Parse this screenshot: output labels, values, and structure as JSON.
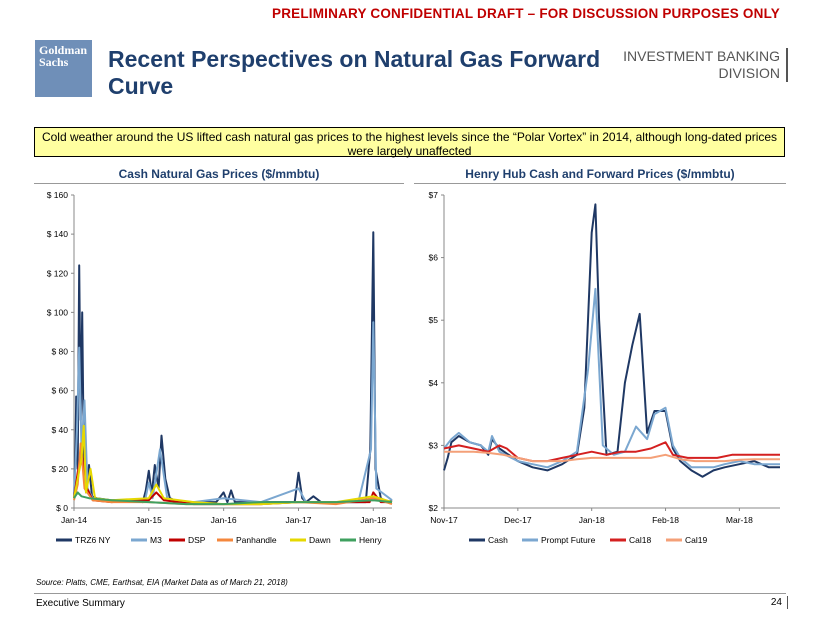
{
  "header": {
    "banner": "PRELIMINARY CONFIDENTIAL DRAFT – FOR DISCUSSION PURPOSES ONLY",
    "logo_line1": "Goldman",
    "logo_line2": "Sachs",
    "title": "Recent Perspectives on Natural Gas Forward Curve",
    "division_line1": "INVESTMENT BANKING",
    "division_line2": "DIVISION"
  },
  "callout": "Cold weather around the US lifted cash natural gas prices to the highest levels since the “Polar Vortex” in 2014, although long-dated prices were largely unaffected",
  "chart_data": [
    {
      "type": "line",
      "title": "Cash Natural Gas Prices ($/mmbtu)",
      "ylim": [
        0,
        160
      ],
      "y_ticks": [
        "$ 0",
        "$ 20",
        "$ 40",
        "$ 60",
        "$ 80",
        "$ 100",
        "$ 120",
        "$ 140",
        "$ 160"
      ],
      "x_ticks": [
        "Jan-14",
        "Jan-15",
        "Jan-16",
        "Jan-17",
        "Jan-18"
      ],
      "legend_position": "bottom",
      "series": [
        {
          "name": "TRZ6 NY",
          "color": "#1f3864",
          "points": [
            [
              0,
              5
            ],
            [
              0.02,
              30
            ],
            [
              0.03,
              57
            ],
            [
              0.05,
              20
            ],
            [
              0.07,
              124
            ],
            [
              0.09,
              45
            ],
            [
              0.11,
              100
            ],
            [
              0.13,
              30
            ],
            [
              0.16,
              8
            ],
            [
              0.2,
              22
            ],
            [
              0.24,
              6
            ],
            [
              0.3,
              5
            ],
            [
              0.5,
              4
            ],
            [
              0.75,
              4
            ],
            [
              0.92,
              3
            ],
            [
              0.96,
              9
            ],
            [
              1.0,
              19
            ],
            [
              1.04,
              7
            ],
            [
              1.08,
              22
            ],
            [
              1.13,
              10
            ],
            [
              1.17,
              37
            ],
            [
              1.22,
              15
            ],
            [
              1.28,
              5
            ],
            [
              1.4,
              3
            ],
            [
              1.6,
              3
            ],
            [
              1.9,
              3
            ],
            [
              2.0,
              8
            ],
            [
              2.05,
              3
            ],
            [
              2.1,
              9
            ],
            [
              2.15,
              3
            ],
            [
              2.5,
              3
            ],
            [
              2.95,
              3
            ],
            [
              3.0,
              18
            ],
            [
              3.05,
              5
            ],
            [
              3.1,
              3
            ],
            [
              3.2,
              6
            ],
            [
              3.3,
              3
            ],
            [
              3.6,
              3
            ],
            [
              3.9,
              3
            ],
            [
              3.96,
              30
            ],
            [
              4.0,
              141
            ],
            [
              4.03,
              20
            ],
            [
              4.1,
              5
            ],
            [
              4.2,
              3
            ],
            [
              4.25,
              4
            ]
          ]
        },
        {
          "name": "M3",
          "color": "#7ba7d0",
          "points": [
            [
              0,
              5
            ],
            [
              0.04,
              40
            ],
            [
              0.07,
              82
            ],
            [
              0.1,
              30
            ],
            [
              0.14,
              55
            ],
            [
              0.18,
              10
            ],
            [
              0.25,
              5
            ],
            [
              0.5,
              4
            ],
            [
              0.95,
              4
            ],
            [
              1.0,
              13
            ],
            [
              1.05,
              5
            ],
            [
              1.15,
              30
            ],
            [
              1.25,
              4
            ],
            [
              1.6,
              3
            ],
            [
              2.0,
              5
            ],
            [
              2.5,
              3
            ],
            [
              3.0,
              10
            ],
            [
              3.1,
              3
            ],
            [
              3.8,
              3
            ],
            [
              3.97,
              30
            ],
            [
              4.0,
              95
            ],
            [
              4.04,
              10
            ],
            [
              4.25,
              4
            ]
          ]
        },
        {
          "name": "DSP",
          "color": "#c00000",
          "points": [
            [
              0,
              5
            ],
            [
              0.05,
              18
            ],
            [
              0.1,
              30
            ],
            [
              0.15,
              12
            ],
            [
              0.25,
              4
            ],
            [
              0.5,
              3
            ],
            [
              1.0,
              4
            ],
            [
              1.1,
              8
            ],
            [
              1.2,
              4
            ],
            [
              1.6,
              2
            ],
            [
              2.0,
              2
            ],
            [
              2.5,
              2
            ],
            [
              3.0,
              3
            ],
            [
              3.5,
              3
            ],
            [
              3.95,
              3
            ],
            [
              4.0,
              8
            ],
            [
              4.1,
              3
            ],
            [
              4.25,
              3
            ]
          ]
        },
        {
          "name": "Panhandle",
          "color": "#f4873c",
          "points": [
            [
              0,
              4
            ],
            [
              0.05,
              12
            ],
            [
              0.09,
              33
            ],
            [
              0.14,
              10
            ],
            [
              0.25,
              4
            ],
            [
              0.5,
              3
            ],
            [
              1.0,
              3
            ],
            [
              1.5,
              2
            ],
            [
              2.0,
              2
            ],
            [
              2.5,
              2
            ],
            [
              3.0,
              3
            ],
            [
              3.5,
              2
            ],
            [
              4.0,
              5
            ],
            [
              4.25,
              2
            ]
          ]
        },
        {
          "name": "Dawn",
          "color": "#e6d800",
          "points": [
            [
              0,
              5
            ],
            [
              0.05,
              15
            ],
            [
              0.1,
              25
            ],
            [
              0.13,
              42
            ],
            [
              0.16,
              8
            ],
            [
              0.22,
              20
            ],
            [
              0.28,
              5
            ],
            [
              0.5,
              4
            ],
            [
              1.0,
              5
            ],
            [
              1.1,
              12
            ],
            [
              1.2,
              5
            ],
            [
              1.6,
              3
            ],
            [
              2.0,
              2
            ],
            [
              2.5,
              2
            ],
            [
              3.0,
              3
            ],
            [
              3.5,
              3
            ],
            [
              4.0,
              6
            ],
            [
              4.25,
              3
            ]
          ]
        },
        {
          "name": "Henry",
          "color": "#3fa05f",
          "points": [
            [
              0,
              5
            ],
            [
              0.05,
              8
            ],
            [
              0.1,
              6
            ],
            [
              0.2,
              5
            ],
            [
              0.5,
              4
            ],
            [
              1.0,
              3
            ],
            [
              1.5,
              2
            ],
            [
              2.0,
              2
            ],
            [
              2.5,
              3
            ],
            [
              3.0,
              3
            ],
            [
              3.5,
              3
            ],
            [
              4.0,
              4
            ],
            [
              4.25,
              3
            ]
          ]
        }
      ]
    },
    {
      "type": "line",
      "title": "Henry Hub Cash and Forward Prices ($/mmbtu)",
      "ylim": [
        2,
        7
      ],
      "y_ticks": [
        "$2",
        "$3",
        "$4",
        "$5",
        "$6",
        "$7"
      ],
      "x_ticks": [
        "Nov-17",
        "Dec-17",
        "Jan-18",
        "Feb-18",
        "Mar-18"
      ],
      "legend_position": "bottom",
      "series": [
        {
          "name": "Cash",
          "color": "#1f3864",
          "points": [
            [
              0,
              2.6
            ],
            [
              0.05,
              2.8
            ],
            [
              0.1,
              3.05
            ],
            [
              0.2,
              3.15
            ],
            [
              0.35,
              3.05
            ],
            [
              0.5,
              3.0
            ],
            [
              0.6,
              2.85
            ],
            [
              0.65,
              3.1
            ],
            [
              0.75,
              2.95
            ],
            [
              1.0,
              2.75
            ],
            [
              1.2,
              2.65
            ],
            [
              1.4,
              2.6
            ],
            [
              1.6,
              2.7
            ],
            [
              1.8,
              2.85
            ],
            [
              1.9,
              3.6
            ],
            [
              2.0,
              6.4
            ],
            [
              2.05,
              6.85
            ],
            [
              2.1,
              5.0
            ],
            [
              2.2,
              2.85
            ],
            [
              2.35,
              2.9
            ],
            [
              2.45,
              4.0
            ],
            [
              2.55,
              4.6
            ],
            [
              2.65,
              5.1
            ],
            [
              2.75,
              3.2
            ],
            [
              2.85,
              3.55
            ],
            [
              3.0,
              3.55
            ],
            [
              3.1,
              2.95
            ],
            [
              3.2,
              2.75
            ],
            [
              3.35,
              2.6
            ],
            [
              3.5,
              2.5
            ],
            [
              3.65,
              2.6
            ],
            [
              3.8,
              2.65
            ],
            [
              4.0,
              2.7
            ],
            [
              4.2,
              2.75
            ],
            [
              4.4,
              2.65
            ],
            [
              4.55,
              2.65
            ]
          ]
        },
        {
          "name": "Prompt Future",
          "color": "#7ba7d0",
          "points": [
            [
              0,
              2.95
            ],
            [
              0.1,
              3.1
            ],
            [
              0.2,
              3.2
            ],
            [
              0.35,
              3.05
            ],
            [
              0.5,
              3.0
            ],
            [
              0.6,
              2.9
            ],
            [
              0.65,
              3.15
            ],
            [
              0.75,
              2.9
            ],
            [
              1.0,
              2.75
            ],
            [
              1.2,
              2.7
            ],
            [
              1.4,
              2.65
            ],
            [
              1.6,
              2.75
            ],
            [
              1.8,
              2.9
            ],
            [
              1.95,
              4.2
            ],
            [
              2.05,
              5.5
            ],
            [
              2.15,
              3.0
            ],
            [
              2.3,
              2.85
            ],
            [
              2.45,
              2.9
            ],
            [
              2.6,
              3.3
            ],
            [
              2.75,
              3.1
            ],
            [
              2.85,
              3.5
            ],
            [
              3.0,
              3.6
            ],
            [
              3.1,
              3.0
            ],
            [
              3.2,
              2.8
            ],
            [
              3.35,
              2.65
            ],
            [
              3.5,
              2.65
            ],
            [
              3.65,
              2.65
            ],
            [
              3.8,
              2.7
            ],
            [
              4.0,
              2.75
            ],
            [
              4.2,
              2.7
            ],
            [
              4.4,
              2.7
            ],
            [
              4.55,
              2.7
            ]
          ]
        },
        {
          "name": "Cal18",
          "color": "#d42020",
          "points": [
            [
              0,
              2.95
            ],
            [
              0.2,
              3.0
            ],
            [
              0.4,
              2.95
            ],
            [
              0.6,
              2.9
            ],
            [
              0.75,
              3.0
            ],
            [
              0.85,
              2.95
            ],
            [
              1.0,
              2.8
            ],
            [
              1.2,
              2.75
            ],
            [
              1.4,
              2.75
            ],
            [
              1.6,
              2.8
            ],
            [
              1.8,
              2.85
            ],
            [
              2.0,
              2.9
            ],
            [
              2.2,
              2.85
            ],
            [
              2.4,
              2.9
            ],
            [
              2.6,
              2.9
            ],
            [
              2.8,
              2.95
            ],
            [
              3.0,
              3.05
            ],
            [
              3.1,
              2.85
            ],
            [
              3.3,
              2.8
            ],
            [
              3.5,
              2.8
            ],
            [
              3.7,
              2.8
            ],
            [
              3.9,
              2.85
            ],
            [
              4.1,
              2.85
            ],
            [
              4.3,
              2.85
            ],
            [
              4.55,
              2.85
            ]
          ]
        },
        {
          "name": "Cal19",
          "color": "#f4a078",
          "points": [
            [
              0,
              2.9
            ],
            [
              0.2,
              2.9
            ],
            [
              0.4,
              2.9
            ],
            [
              0.6,
              2.88
            ],
            [
              0.8,
              2.85
            ],
            [
              1.0,
              2.8
            ],
            [
              1.2,
              2.75
            ],
            [
              1.4,
              2.75
            ],
            [
              1.6,
              2.75
            ],
            [
              1.8,
              2.78
            ],
            [
              2.0,
              2.8
            ],
            [
              2.2,
              2.8
            ],
            [
              2.4,
              2.8
            ],
            [
              2.6,
              2.8
            ],
            [
              2.8,
              2.8
            ],
            [
              3.0,
              2.85
            ],
            [
              3.2,
              2.78
            ],
            [
              3.4,
              2.75
            ],
            [
              3.6,
              2.75
            ],
            [
              3.8,
              2.75
            ],
            [
              4.0,
              2.77
            ],
            [
              4.2,
              2.78
            ],
            [
              4.4,
              2.78
            ],
            [
              4.55,
              2.78
            ]
          ]
        }
      ]
    }
  ],
  "footer": {
    "source": "Source: Platts, CME, Earthsat, EIA (Market Data as of March 21, 2018)",
    "section": "Executive Summary",
    "page": "24"
  }
}
